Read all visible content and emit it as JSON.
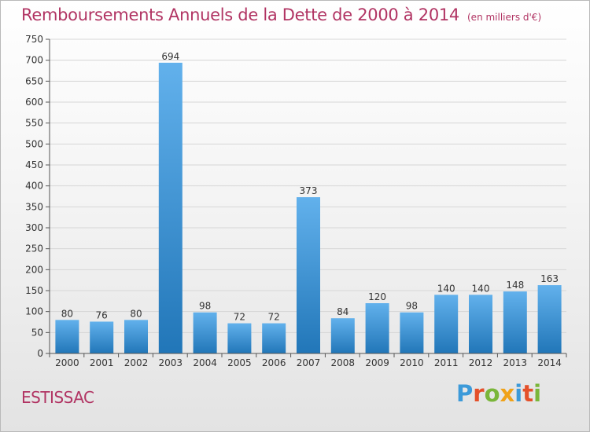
{
  "header": {
    "title": "Remboursements Annuels de la Dette de 2000 à 2014",
    "unit": "(en milliers d'€)"
  },
  "footer": {
    "city": "ESTISSAC",
    "logo": "Proxiti"
  },
  "colors": {
    "title": "#b13463",
    "bar_top": "#62b1ec",
    "bar_bottom": "#2176b8",
    "logo_letters": [
      "#3c9ad9",
      "#e4502a",
      "#7ab63a",
      "#f0a218",
      "#3c9ad9",
      "#e4502a",
      "#7ab63a"
    ]
  },
  "chart_data": {
    "type": "bar",
    "categories": [
      "2000",
      "2001",
      "2002",
      "2003",
      "2004",
      "2005",
      "2006",
      "2007",
      "2008",
      "2009",
      "2010",
      "2011",
      "2012",
      "2013",
      "2014"
    ],
    "values": [
      80,
      76,
      80,
      694,
      98,
      72,
      72,
      373,
      84,
      120,
      98,
      140,
      140,
      148,
      163
    ],
    "ylim": [
      0,
      750
    ],
    "yticks": [
      0,
      50,
      100,
      150,
      200,
      250,
      300,
      350,
      400,
      450,
      500,
      550,
      600,
      650,
      700,
      750
    ],
    "grid": true,
    "legend": "none"
  }
}
